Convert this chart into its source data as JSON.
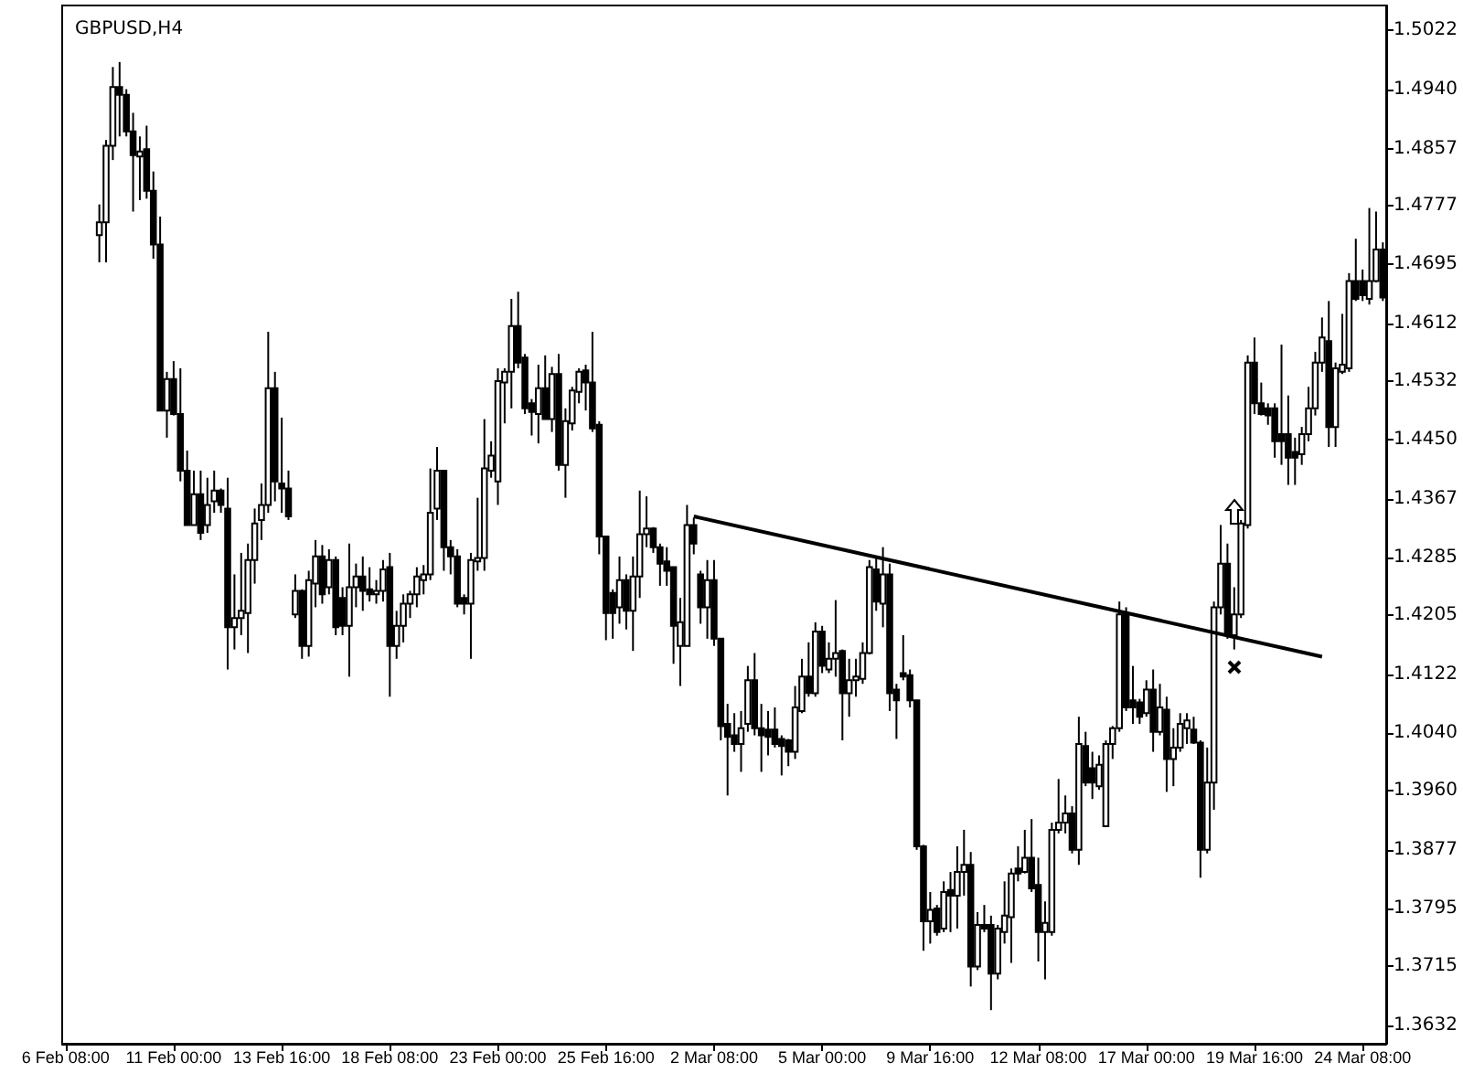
{
  "chart_data": {
    "type": "candlestick",
    "title": "GBPUSD,H4",
    "color": "#000000",
    "categories": [
      "6 Feb 08:00",
      null,
      null,
      null,
      null,
      null,
      null,
      null,
      null,
      null,
      null,
      null,
      null,
      null,
      null,
      null,
      "11 Feb 00:00",
      null,
      null,
      null,
      null,
      null,
      null,
      null,
      null,
      null,
      null,
      null,
      null,
      null,
      null,
      null,
      "13 Feb 16:00",
      null,
      null,
      null,
      null,
      null,
      null,
      null,
      null,
      null,
      null,
      null,
      null,
      null,
      null,
      null,
      "18 Feb 08:00",
      null,
      null,
      null,
      null,
      null,
      null,
      null,
      null,
      null,
      null,
      null,
      null,
      null,
      null,
      null,
      "23 Feb 00:00",
      null,
      null,
      null,
      null,
      null,
      null,
      null,
      null,
      null,
      null,
      null,
      null,
      null,
      null,
      null,
      "25 Feb 16:00",
      null,
      null,
      null,
      null,
      null,
      null,
      null,
      null,
      null,
      null,
      null,
      null,
      null,
      null,
      null,
      "2 Mar 08:00",
      null,
      null,
      null,
      null,
      null,
      null,
      null,
      null,
      null,
      null,
      null,
      null,
      null,
      null,
      null,
      "5 Mar 00:00",
      null,
      null,
      null,
      null,
      null,
      null,
      null,
      null,
      null,
      null,
      null,
      null,
      null,
      null,
      null,
      "9 Mar 16:00",
      null,
      null,
      null,
      null,
      null,
      null,
      null,
      null,
      null,
      null,
      null,
      null,
      null,
      null,
      null,
      "12 Mar 08:00",
      null,
      null,
      null,
      null,
      null,
      null,
      null,
      null,
      null,
      null,
      null,
      null,
      null,
      null,
      null,
      "17 Mar 00:00",
      null,
      null,
      null,
      null,
      null,
      null,
      null,
      null,
      null,
      null,
      null,
      null,
      null,
      null,
      null,
      "19 Mar 16:00",
      null,
      null,
      null,
      null,
      null,
      null,
      null,
      null,
      null,
      null,
      null,
      null,
      null,
      null,
      null,
      "24 Mar 08:00",
      null,
      null,
      null
    ],
    "ohlc": [
      null,
      null,
      null,
      null,
      null,
      [
        1.4736,
        1.4779,
        1.4698,
        1.4754
      ],
      [
        1.4754,
        1.4869,
        1.4698,
        1.4861
      ],
      [
        1.4861,
        1.4971,
        1.4841,
        1.4943
      ],
      [
        1.4943,
        1.4978,
        1.4874,
        1.4932
      ],
      [
        1.4932,
        1.494,
        1.4874,
        1.4881
      ],
      [
        1.4881,
        1.4907,
        1.4769,
        1.4848
      ],
      [
        1.4846,
        1.4874,
        1.4785,
        1.4853
      ],
      [
        1.4856,
        1.4889,
        1.4787,
        1.4798
      ],
      [
        1.4798,
        1.4825,
        1.4703,
        1.4723
      ],
      [
        1.4723,
        1.4762,
        1.4491,
        1.4491
      ],
      [
        1.4491,
        1.4545,
        1.4453,
        1.4535
      ],
      [
        1.4535,
        1.456,
        1.4484,
        1.4486
      ],
      [
        1.4486,
        1.455,
        1.4392,
        1.4407
      ],
      [
        1.4407,
        1.4435,
        1.4331,
        1.4331
      ],
      [
        1.4331,
        1.4407,
        1.4331,
        1.4374
      ],
      [
        1.4374,
        1.4407,
        1.431,
        1.432
      ],
      [
        1.4331,
        1.4397,
        1.432,
        1.4359
      ],
      [
        1.4364,
        1.4407,
        1.4348,
        1.4379
      ],
      [
        1.4379,
        1.4382,
        1.4348,
        1.4359
      ],
      [
        1.4354,
        1.4397,
        1.4129,
        1.4188
      ],
      [
        1.4188,
        1.4262,
        1.4157,
        1.4201
      ],
      [
        1.4201,
        1.4292,
        1.4177,
        1.4211
      ],
      [
        1.4208,
        1.4305,
        1.4152,
        1.4282
      ],
      [
        1.4282,
        1.4354,
        1.4249,
        1.4333
      ],
      [
        1.4338,
        1.4389,
        1.431,
        1.4359
      ],
      [
        1.4359,
        1.4601,
        1.4348,
        1.4522
      ],
      [
        1.4522,
        1.4545,
        1.4364,
        1.4392
      ],
      [
        1.4389,
        1.4481,
        1.4348,
        1.4382
      ],
      [
        1.4382,
        1.4407,
        1.4338,
        1.4343
      ],
      [
        1.4206,
        1.4262,
        1.4201,
        1.4239
      ],
      [
        1.4239,
        1.4241,
        1.4144,
        1.4162
      ],
      [
        1.4162,
        1.4267,
        1.4147,
        1.4254
      ],
      [
        1.4249,
        1.431,
        1.4216,
        1.4287
      ],
      [
        1.4287,
        1.4303,
        1.4221,
        1.4234
      ],
      [
        1.4244,
        1.4297,
        1.4234,
        1.4282
      ],
      [
        1.4282,
        1.4287,
        1.4177,
        1.4188
      ],
      [
        1.4229,
        1.4244,
        1.4177,
        1.419
      ],
      [
        1.419,
        1.4305,
        1.4119,
        1.4244
      ],
      [
        1.4244,
        1.4277,
        1.4216,
        1.4259
      ],
      [
        1.4259,
        1.4287,
        1.4211,
        1.4239
      ],
      [
        1.4241,
        1.4272,
        1.4224,
        1.4234
      ],
      [
        1.4234,
        1.4254,
        1.4221,
        1.4239
      ],
      [
        1.4239,
        1.4282,
        1.4224,
        1.4269
      ],
      [
        1.4272,
        1.4292,
        1.4091,
        1.4162
      ],
      [
        1.4162,
        1.4211,
        1.4144,
        1.419
      ],
      [
        1.419,
        1.4234,
        1.4167,
        1.4221
      ],
      [
        1.4221,
        1.4239,
        1.4201,
        1.4234
      ],
      [
        1.4234,
        1.4272,
        1.4216,
        1.4259
      ],
      [
        1.4254,
        1.4275,
        1.4234,
        1.4262
      ],
      [
        1.4262,
        1.441,
        1.4254,
        1.4348
      ],
      [
        1.4354,
        1.444,
        1.4338,
        1.4407
      ],
      [
        1.4407,
        1.4407,
        1.4267,
        1.43
      ],
      [
        1.43,
        1.431,
        1.4262,
        1.4287
      ],
      [
        1.4287,
        1.4297,
        1.4216,
        1.4221
      ],
      [
        1.4229,
        1.4234,
        1.4206,
        1.4221
      ],
      [
        1.4221,
        1.4292,
        1.4144,
        1.4282
      ],
      [
        1.428,
        1.4369,
        1.4267,
        1.4285
      ],
      [
        1.4285,
        1.4479,
        1.4267,
        1.441
      ],
      [
        1.4407,
        1.4448,
        1.4397,
        1.4428
      ],
      [
        1.4392,
        1.455,
        1.4359,
        1.4532
      ],
      [
        1.453,
        1.455,
        1.4473,
        1.4545
      ],
      [
        1.4545,
        1.4647,
        1.4494,
        1.4609
      ],
      [
        1.4609,
        1.4657,
        1.455,
        1.4558
      ],
      [
        1.4565,
        1.457,
        1.4486,
        1.4494
      ],
      [
        1.4501,
        1.4507,
        1.4456,
        1.4489
      ],
      [
        1.4486,
        1.4555,
        1.4445,
        1.4522
      ],
      [
        1.4522,
        1.4568,
        1.4479,
        1.4479
      ],
      [
        1.4479,
        1.4552,
        1.4461,
        1.4542
      ],
      [
        1.4542,
        1.457,
        1.4407,
        1.4415
      ],
      [
        1.4415,
        1.4494,
        1.4369,
        1.4476
      ],
      [
        1.4473,
        1.4524,
        1.4463,
        1.4519
      ],
      [
        1.4517,
        1.455,
        1.4501,
        1.4545
      ],
      [
        1.4547,
        1.4555,
        1.4491,
        1.453
      ],
      [
        1.453,
        1.4601,
        1.4461,
        1.4466
      ],
      [
        1.4471,
        1.4476,
        1.429,
        1.4315
      ],
      [
        1.4315,
        1.4315,
        1.417,
        1.4208
      ],
      [
        1.4236,
        1.4241,
        1.4172,
        1.4208
      ],
      [
        1.4216,
        1.4287,
        1.4193,
        1.4254
      ],
      [
        1.4254,
        1.4262,
        1.4185,
        1.4211
      ],
      [
        1.4211,
        1.4287,
        1.4155,
        1.4259
      ],
      [
        1.4259,
        1.4379,
        1.4229,
        1.4318
      ],
      [
        1.4318,
        1.4371,
        1.43,
        1.4326
      ],
      [
        1.4326,
        1.4328,
        1.4292,
        1.43
      ],
      [
        1.43,
        1.4305,
        1.4246,
        1.4277
      ],
      [
        1.428,
        1.43,
        1.4246,
        1.4267
      ],
      [
        1.4272,
        1.4272,
        1.4137,
        1.419
      ],
      [
        1.4162,
        1.4229,
        1.4106,
        1.4195
      ],
      [
        1.4162,
        1.4359,
        1.4162,
        1.4331
      ],
      [
        1.4331,
        1.4341,
        1.429,
        1.4305
      ],
      [
        1.4262,
        1.4267,
        1.4193,
        1.4216
      ],
      [
        1.4216,
        1.4282,
        1.4172,
        1.4254
      ],
      [
        1.4254,
        1.4282,
        1.4162,
        1.4172
      ],
      [
        1.4172,
        1.4172,
        1.403,
        1.405
      ],
      [
        1.4053,
        1.4081,
        1.3953,
        1.4035
      ],
      [
        1.4037,
        1.4068,
        1.4014,
        1.4025
      ],
      [
        1.4025,
        1.4071,
        1.3986,
        1.4047
      ],
      [
        1.4053,
        1.4134,
        1.4042,
        1.4114
      ],
      [
        1.4114,
        1.4152,
        1.4037,
        1.4047
      ],
      [
        1.4047,
        1.4081,
        1.3986,
        1.4037
      ],
      [
        1.4045,
        1.4071,
        1.4009,
        1.4035
      ],
      [
        1.4045,
        1.4076,
        1.402,
        1.4025
      ],
      [
        1.4032,
        1.4037,
        1.3981,
        1.4022
      ],
      [
        1.403,
        1.4032,
        1.3994,
        1.4014
      ],
      [
        1.4014,
        1.4106,
        1.4004,
        1.4076
      ],
      [
        1.4071,
        1.4144,
        1.4068,
        1.4119
      ],
      [
        1.4119,
        1.4167,
        1.4091,
        1.4096
      ],
      [
        1.4096,
        1.4195,
        1.4091,
        1.4182
      ],
      [
        1.4182,
        1.419,
        1.4124,
        1.4134
      ],
      [
        1.4129,
        1.4167,
        1.4124,
        1.4144
      ],
      [
        1.4144,
        1.4226,
        1.4119,
        1.4152
      ],
      [
        1.4155,
        1.4157,
        1.403,
        1.4096
      ],
      [
        1.4096,
        1.4144,
        1.4063,
        1.4114
      ],
      [
        1.4114,
        1.4144,
        1.4091,
        1.4119
      ],
      [
        1.4116,
        1.4167,
        1.4109,
        1.4152
      ],
      [
        1.4152,
        1.4282,
        1.415,
        1.4272
      ],
      [
        1.4269,
        1.4287,
        1.4211,
        1.4224
      ],
      [
        1.4221,
        1.43,
        1.4188,
        1.4262
      ],
      [
        1.4262,
        1.4277,
        1.4071,
        1.4096
      ],
      [
        1.4101,
        1.4109,
        1.4032,
        1.4086
      ],
      [
        1.4124,
        1.4177,
        1.4114,
        1.4119
      ],
      [
        1.4121,
        1.4129,
        1.4076,
        1.4086
      ],
      [
        1.4086,
        1.4086,
        1.3877,
        1.3882
      ],
      [
        1.3882,
        1.3884,
        1.3736,
        1.3777
      ],
      [
        1.3777,
        1.3818,
        1.3746,
        1.3793
      ],
      [
        1.3795,
        1.38,
        1.3757,
        1.3762
      ],
      [
        1.3767,
        1.3833,
        1.3762,
        1.3818
      ],
      [
        1.3821,
        1.3846,
        1.3762,
        1.3813
      ],
      [
        1.3813,
        1.3882,
        1.3767,
        1.3846
      ],
      [
        1.3846,
        1.3905,
        1.3813,
        1.3856
      ],
      [
        1.3856,
        1.3874,
        1.3686,
        1.3714
      ],
      [
        1.3714,
        1.379,
        1.3709,
        1.3772
      ],
      [
        1.3772,
        1.38,
        1.3762,
        1.3767
      ],
      [
        1.3772,
        1.3785,
        1.3653,
        1.3704
      ],
      [
        1.3704,
        1.3772,
        1.3696,
        1.3767
      ],
      [
        1.3762,
        1.3833,
        1.3746,
        1.3785
      ],
      [
        1.3783,
        1.3851,
        1.3719,
        1.3844
      ],
      [
        1.3851,
        1.3882,
        1.3833,
        1.3844
      ],
      [
        1.3846,
        1.3905,
        1.3844,
        1.3866
      ],
      [
        1.3866,
        1.392,
        1.3818,
        1.3823
      ],
      [
        1.3828,
        1.3866,
        1.3721,
        1.3762
      ],
      [
        1.3762,
        1.3805,
        1.3696,
        1.3775
      ],
      [
        1.3762,
        1.3915,
        1.3757,
        1.3905
      ],
      [
        1.3905,
        1.3976,
        1.39,
        1.3915
      ],
      [
        1.3915,
        1.3953,
        1.39,
        1.3928
      ],
      [
        1.3928,
        1.3938,
        1.3872,
        1.3877
      ],
      [
        1.3877,
        1.4063,
        1.3856,
        1.4025
      ],
      [
        1.4022,
        1.4042,
        1.3966,
        1.3971
      ],
      [
        1.3991,
        1.4014,
        1.3948,
        1.3971
      ],
      [
        1.3966,
        1.4009,
        1.3961,
        1.3996
      ],
      [
        1.391,
        1.403,
        1.391,
        1.4025
      ],
      [
        1.4025,
        1.405,
        1.4004,
        1.4047
      ],
      [
        1.4047,
        1.4224,
        1.4042,
        1.4206
      ],
      [
        1.4206,
        1.4216,
        1.4071,
        1.4076
      ],
      [
        1.4086,
        1.4134,
        1.4053,
        1.4076
      ],
      [
        1.4083,
        1.4088,
        1.4053,
        1.4063
      ],
      [
        1.4068,
        1.4114,
        1.4063,
        1.4101
      ],
      [
        1.4101,
        1.4129,
        1.4014,
        1.4042
      ],
      [
        1.4042,
        1.4109,
        1.4037,
        1.4076
      ],
      [
        1.4073,
        1.4091,
        1.3958,
        1.4004
      ],
      [
        1.4004,
        1.4047,
        1.3966,
        1.402
      ],
      [
        1.402,
        1.4068,
        1.4014,
        1.4053
      ],
      [
        1.4047,
        1.4068,
        1.4025,
        1.4058
      ],
      [
        1.4045,
        1.4063,
        1.4025,
        1.4027
      ],
      [
        1.4027,
        1.403,
        1.3838,
        1.3877
      ],
      [
        1.3877,
        1.402,
        1.3872,
        1.3971
      ],
      [
        1.3971,
        1.4224,
        1.3933,
        1.4216
      ],
      [
        1.4216,
        1.4331,
        1.4206,
        1.4277
      ],
      [
        1.4277,
        1.4305,
        1.4172,
        1.4177
      ],
      [
        1.4177,
        1.4244,
        1.4157,
        1.4206
      ],
      [
        1.4206,
        1.4338,
        1.4201,
        1.4333
      ],
      [
        1.4331,
        1.4568,
        1.4326,
        1.4558
      ],
      [
        1.4558,
        1.4593,
        1.4486,
        1.4501
      ],
      [
        1.4501,
        1.453,
        1.4484,
        1.4486
      ],
      [
        1.4494,
        1.4501,
        1.4471,
        1.4484
      ],
      [
        1.4494,
        1.4501,
        1.4425,
        1.4448
      ],
      [
        1.4458,
        1.4583,
        1.4415,
        1.4448
      ],
      [
        1.4458,
        1.4512,
        1.4387,
        1.4425
      ],
      [
        1.4433,
        1.4453,
        1.4387,
        1.4425
      ],
      [
        1.443,
        1.4468,
        1.4415,
        1.4458
      ],
      [
        1.4458,
        1.4524,
        1.4448,
        1.4494
      ],
      [
        1.4494,
        1.4573,
        1.4484,
        1.4558
      ],
      [
        1.4558,
        1.4621,
        1.4545,
        1.4593
      ],
      [
        1.4588,
        1.4644,
        1.444,
        1.4468
      ],
      [
        1.4468,
        1.4558,
        1.444,
        1.455
      ],
      [
        1.4545,
        1.4626,
        1.4542,
        1.4555
      ],
      [
        1.455,
        1.4683,
        1.4545,
        1.4672
      ],
      [
        1.4672,
        1.4731,
        1.4644,
        1.4647
      ],
      [
        1.4672,
        1.4688,
        1.4644,
        1.4652
      ],
      [
        1.4647,
        1.4774,
        1.4639,
        1.4672
      ],
      [
        1.4672,
        1.4769,
        1.467,
        1.4716
      ],
      [
        1.4716,
        1.4726,
        1.4644,
        1.4649
      ]
    ],
    "series": [
      {
        "type": "line",
        "color": "#000000",
        "values": [
          null,
          null,
          null,
          null,
          null,
          null,
          null,
          null,
          null,
          null,
          null,
          null,
          null,
          null,
          null,
          null,
          null,
          null,
          null,
          null,
          null,
          null,
          null,
          null,
          null,
          null,
          null,
          null,
          null,
          null,
          null,
          null,
          null,
          null,
          null,
          null,
          null,
          null,
          null,
          null,
          null,
          null,
          null,
          null,
          null,
          null,
          null,
          null,
          null,
          null,
          null,
          null,
          null,
          null,
          null,
          null,
          null,
          null,
          null,
          null,
          null,
          null,
          null,
          null,
          null,
          null,
          null,
          null,
          null,
          null,
          null,
          null,
          null,
          null,
          null,
          null,
          null,
          null,
          null,
          null,
          null,
          null,
          null,
          null,
          null,
          null,
          null,
          null,
          null,
          null,
          null,
          null,
          null,
          1.4343,
          null,
          null,
          null,
          null,
          null,
          null,
          null,
          null,
          null,
          null,
          null,
          null,
          null,
          null,
          null,
          null,
          null,
          null,
          null,
          null,
          null,
          null,
          null,
          null,
          null,
          null,
          null,
          null,
          null,
          null,
          null,
          null,
          null,
          null,
          null,
          null,
          null,
          null,
          null,
          null,
          null,
          null,
          null,
          null,
          null,
          null,
          null,
          null,
          null,
          null,
          null,
          null,
          null,
          null,
          null,
          null,
          null,
          null,
          null,
          null,
          null,
          null,
          null,
          null,
          null,
          null,
          null,
          null,
          null,
          null,
          null,
          null,
          null,
          null,
          null,
          null,
          null,
          null,
          null,
          null,
          null,
          null,
          null,
          null,
          null,
          null,
          null,
          null,
          null,
          null,
          null,
          null,
          1.4147,
          null,
          null,
          null,
          null,
          null,
          null,
          null,
          null,
          null
        ]
      }
    ],
    "ylim": [
      1.3606,
      1.5057
    ],
    "yticks": [
      {
        "value": 1.3632,
        "label": "1.3632"
      },
      {
        "value": 1.3715,
        "label": "1.3715"
      },
      {
        "value": 1.3795,
        "label": "1.3795"
      },
      {
        "value": 1.3877,
        "label": "1.3877"
      },
      {
        "value": 1.396,
        "label": "1.3960"
      },
      {
        "value": 1.404,
        "label": "1.4040"
      },
      {
        "value": 1.4122,
        "label": "1.4122"
      },
      {
        "value": 1.4205,
        "label": "1.4205"
      },
      {
        "value": 1.4285,
        "label": "1.4285"
      },
      {
        "value": 1.4367,
        "label": "1.4367"
      },
      {
        "value": 1.445,
        "label": "1.4450"
      },
      {
        "value": 1.4532,
        "label": "1.4532"
      },
      {
        "value": 1.4612,
        "label": "1.4612"
      },
      {
        "value": 1.4695,
        "label": "1.4695"
      },
      {
        "value": 1.4777,
        "label": "1.4777"
      },
      {
        "value": 1.4857,
        "label": "1.4857"
      },
      {
        "value": 1.494,
        "label": "1.4940"
      },
      {
        "value": 1.5022,
        "label": "1.5022"
      }
    ]
  }
}
